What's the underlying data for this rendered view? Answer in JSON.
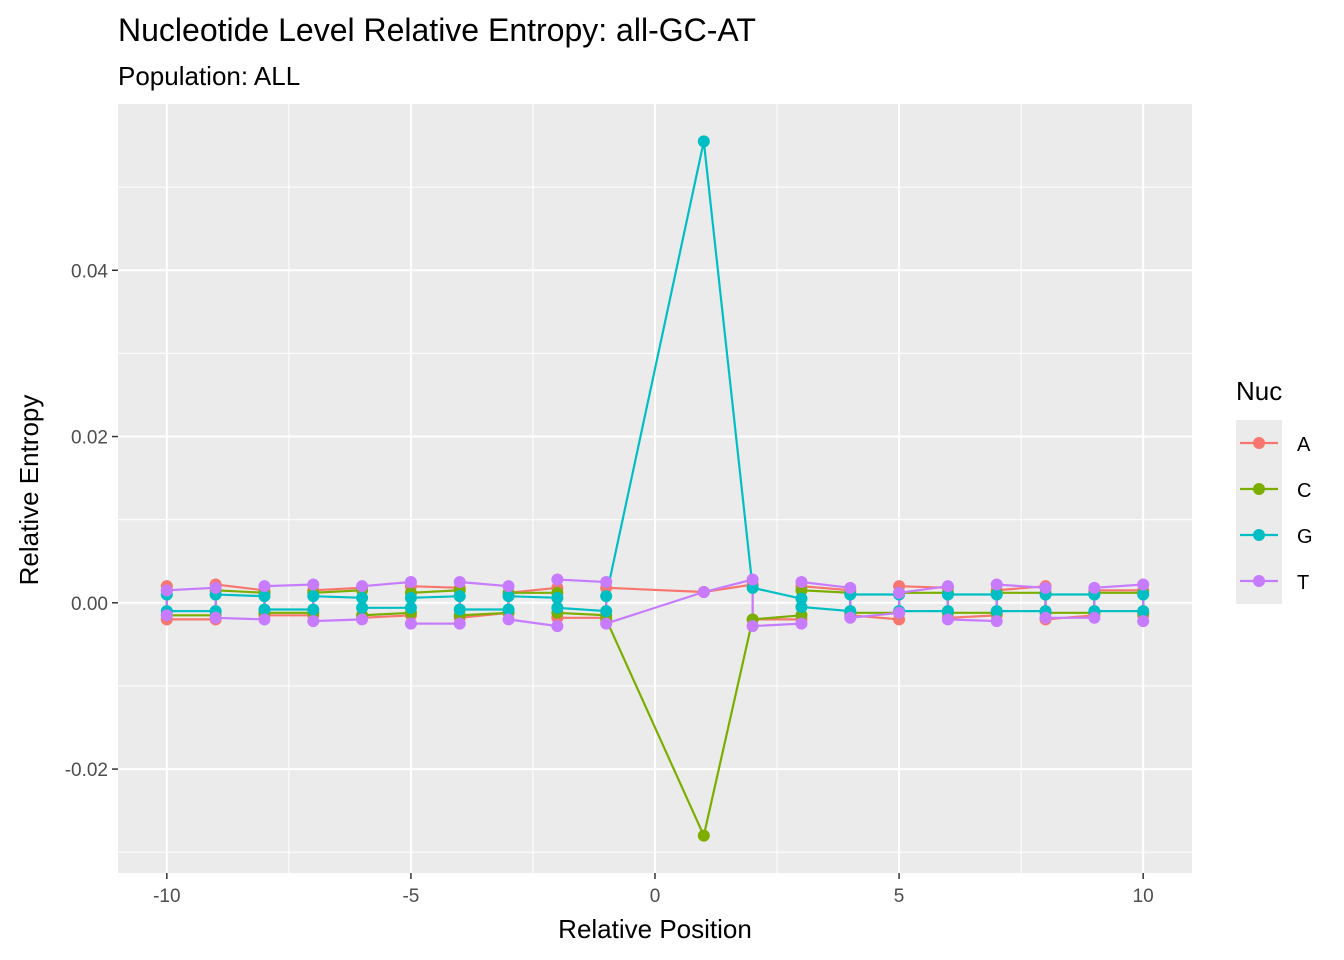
{
  "chart_data": {
    "type": "line",
    "title": "Nucleotide Level Relative Entropy: all-GC-AT",
    "subtitle": "Population: ALL",
    "xlabel": "Relative Position",
    "ylabel": "Relative Entropy",
    "xlim": [
      -11,
      11
    ],
    "ylim": [
      -0.0325,
      0.06
    ],
    "x_ticks": [
      -10,
      -5,
      0,
      5,
      10
    ],
    "x_tick_labels": [
      "-10",
      "-5",
      "0",
      "5",
      "10"
    ],
    "y_ticks": [
      -0.02,
      0.0,
      0.02,
      0.04
    ],
    "y_tick_labels": [
      "-0.02",
      "0.00",
      "0.02",
      "0.04"
    ],
    "grid": true,
    "legend": {
      "title": "Nuc",
      "placement": "right"
    },
    "series": [
      {
        "name": "A",
        "color": "#F8766D",
        "points": [
          [
            -10,
            0.002
          ],
          [
            -10,
            -0.002
          ],
          [
            -9,
            -0.002
          ],
          [
            -9,
            0.0022
          ],
          [
            -8,
            0.0015
          ],
          [
            -8,
            -0.0015
          ],
          [
            -7,
            -0.0015
          ],
          [
            -7,
            0.0015
          ],
          [
            -6,
            0.0018
          ],
          [
            -6,
            -0.0018
          ],
          [
            -5,
            -0.0015
          ],
          [
            -5,
            0.002
          ],
          [
            -4,
            0.0018
          ],
          [
            -4,
            -0.0018
          ],
          [
            -3,
            -0.0012
          ],
          [
            -3,
            0.0012
          ],
          [
            -2,
            0.0018
          ],
          [
            -2,
            -0.0018
          ],
          [
            -1,
            -0.0018
          ],
          [
            -1,
            0.0018
          ],
          [
            1,
            0.0013
          ],
          [
            2,
            0.0022
          ],
          [
            2,
            -0.002
          ],
          [
            3,
            -0.002
          ],
          [
            3,
            0.002
          ],
          [
            4,
            0.0015
          ],
          [
            4,
            -0.0015
          ],
          [
            5,
            -0.002
          ],
          [
            5,
            0.002
          ],
          [
            6,
            0.0018
          ],
          [
            6,
            -0.0018
          ],
          [
            7,
            -0.0015
          ],
          [
            7,
            0.0015
          ],
          [
            8,
            0.002
          ],
          [
            8,
            -0.002
          ],
          [
            9,
            -0.0015
          ],
          [
            9,
            0.0015
          ],
          [
            10,
            0.0015
          ],
          [
            10,
            -0.0015
          ]
        ]
      },
      {
        "name": "C",
        "color": "#7CAE00",
        "points": [
          [
            -10,
            0.0015
          ],
          [
            -10,
            -0.0015
          ],
          [
            -9,
            -0.0015
          ],
          [
            -9,
            0.0015
          ],
          [
            -8,
            0.0012
          ],
          [
            -8,
            -0.0012
          ],
          [
            -7,
            -0.0012
          ],
          [
            -7,
            0.0012
          ],
          [
            -6,
            0.0015
          ],
          [
            -6,
            -0.0015
          ],
          [
            -5,
            -0.0012
          ],
          [
            -5,
            0.0012
          ],
          [
            -4,
            0.0015
          ],
          [
            -4,
            -0.0015
          ],
          [
            -3,
            -0.0012
          ],
          [
            -3,
            0.0012
          ],
          [
            -2,
            0.0012
          ],
          [
            -2,
            -0.0012
          ],
          [
            -1,
            -0.0015
          ],
          [
            -1,
            -0.002
          ],
          [
            1,
            -0.028
          ],
          [
            2,
            -0.002
          ],
          [
            3,
            -0.0015
          ],
          [
            3,
            0.0015
          ],
          [
            4,
            0.0012
          ],
          [
            4,
            -0.0012
          ],
          [
            5,
            -0.0012
          ],
          [
            5,
            0.0012
          ],
          [
            6,
            0.0012
          ],
          [
            6,
            -0.0012
          ],
          [
            7,
            -0.0012
          ],
          [
            7,
            0.0012
          ],
          [
            8,
            0.0012
          ],
          [
            8,
            -0.0012
          ],
          [
            9,
            -0.0012
          ],
          [
            9,
            0.0012
          ],
          [
            10,
            0.0012
          ],
          [
            10,
            -0.0012
          ]
        ]
      },
      {
        "name": "G",
        "color": "#00BFC4",
        "points": [
          [
            -10,
            0.001
          ],
          [
            -10,
            -0.001
          ],
          [
            -9,
            -0.001
          ],
          [
            -9,
            0.001
          ],
          [
            -8,
            0.0008
          ],
          [
            -8,
            -0.0008
          ],
          [
            -7,
            -0.0008
          ],
          [
            -7,
            0.0008
          ],
          [
            -6,
            0.0006
          ],
          [
            -6,
            -0.0006
          ],
          [
            -5,
            -0.0006
          ],
          [
            -5,
            0.0006
          ],
          [
            -4,
            0.0008
          ],
          [
            -4,
            -0.0008
          ],
          [
            -3,
            -0.0008
          ],
          [
            -3,
            0.0008
          ],
          [
            -2,
            0.0006
          ],
          [
            -2,
            -0.0006
          ],
          [
            -1,
            -0.001
          ],
          [
            -1,
            0.0008
          ],
          [
            1,
            0.0555
          ],
          [
            2,
            0.0018
          ],
          [
            3,
            0.0005
          ],
          [
            3,
            -0.0005
          ],
          [
            4,
            -0.001
          ],
          [
            4,
            0.001
          ],
          [
            5,
            0.001
          ],
          [
            5,
            -0.001
          ],
          [
            6,
            -0.001
          ],
          [
            6,
            0.001
          ],
          [
            7,
            0.001
          ],
          [
            7,
            -0.001
          ],
          [
            8,
            -0.001
          ],
          [
            8,
            0.001
          ],
          [
            9,
            0.001
          ],
          [
            9,
            -0.001
          ],
          [
            10,
            -0.001
          ],
          [
            10,
            0.001
          ]
        ]
      },
      {
        "name": "T",
        "color": "#C77CFF",
        "points": [
          [
            -10,
            -0.0015
          ],
          [
            -10,
            0.0015
          ],
          [
            -9,
            0.0018
          ],
          [
            -9,
            -0.0018
          ],
          [
            -8,
            -0.002
          ],
          [
            -8,
            0.002
          ],
          [
            -7,
            0.0022
          ],
          [
            -7,
            -0.0022
          ],
          [
            -6,
            -0.002
          ],
          [
            -6,
            0.002
          ],
          [
            -5,
            0.0025
          ],
          [
            -5,
            -0.0025
          ],
          [
            -4,
            -0.0025
          ],
          [
            -4,
            0.0025
          ],
          [
            -3,
            0.002
          ],
          [
            -3,
            -0.002
          ],
          [
            -2,
            -0.0028
          ],
          [
            -2,
            0.0028
          ],
          [
            -1,
            0.0025
          ],
          [
            -1,
            -0.0025
          ],
          [
            1,
            0.0013
          ],
          [
            2,
            0.0028
          ],
          [
            2,
            -0.0028
          ],
          [
            3,
            -0.0025
          ],
          [
            3,
            0.0025
          ],
          [
            4,
            0.0018
          ],
          [
            4,
            -0.0018
          ],
          [
            5,
            -0.0012
          ],
          [
            5,
            0.0012
          ],
          [
            6,
            0.002
          ],
          [
            6,
            -0.002
          ],
          [
            7,
            -0.0022
          ],
          [
            7,
            0.0022
          ],
          [
            8,
            0.0018
          ],
          [
            8,
            -0.0018
          ],
          [
            9,
            -0.0018
          ],
          [
            9,
            0.0018
          ],
          [
            10,
            0.0022
          ],
          [
            10,
            -0.0022
          ]
        ]
      }
    ]
  }
}
